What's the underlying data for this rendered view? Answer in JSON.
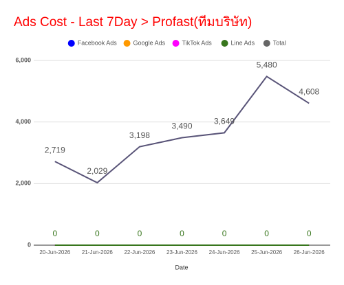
{
  "chart_data": {
    "type": "line",
    "title": "Ads Cost - Last 7Day > Profast(ทีมบริษัท)",
    "x_label": "Date",
    "categories": [
      "20-Jun-2026",
      "21-Jun-2026",
      "22-Jun-2026",
      "23-Jun-2026",
      "24-Jun-2026",
      "25-Jun-2026",
      "26-Jun-2026"
    ],
    "series": [
      {
        "name": "Facebook Ads",
        "color": "#0000ff",
        "values": [
          0,
          0,
          0,
          0,
          0,
          0,
          0
        ]
      },
      {
        "name": "Google Ads",
        "color": "#ff9900",
        "values": [
          0,
          0,
          0,
          0,
          0,
          0,
          0
        ]
      },
      {
        "name": "TikTok Ads",
        "color": "#ff00ff",
        "values": [
          0,
          0,
          0,
          0,
          0,
          0,
          0
        ]
      },
      {
        "name": "Line Ads",
        "color": "#38761d",
        "values": [
          0,
          0,
          0,
          0,
          0,
          0,
          0
        ],
        "data_labels": true
      },
      {
        "name": "Total",
        "color": "#595478",
        "values": [
          2719,
          2029,
          3198,
          3490,
          3649,
          5480,
          4608
        ],
        "data_labels": true,
        "value_labels": [
          "2,719",
          "2,029",
          "3,198",
          "3,490",
          "3,649",
          "5,480",
          "4,608"
        ]
      }
    ],
    "ylim": [
      0,
      6000
    ],
    "yticks": [
      {
        "value": 0,
        "label": "0"
      },
      {
        "value": 2000,
        "label": "2,000"
      },
      {
        "value": 4000,
        "label": "4,000"
      },
      {
        "value": 6000,
        "label": "6,000"
      }
    ],
    "grid": true,
    "legend": "top"
  }
}
